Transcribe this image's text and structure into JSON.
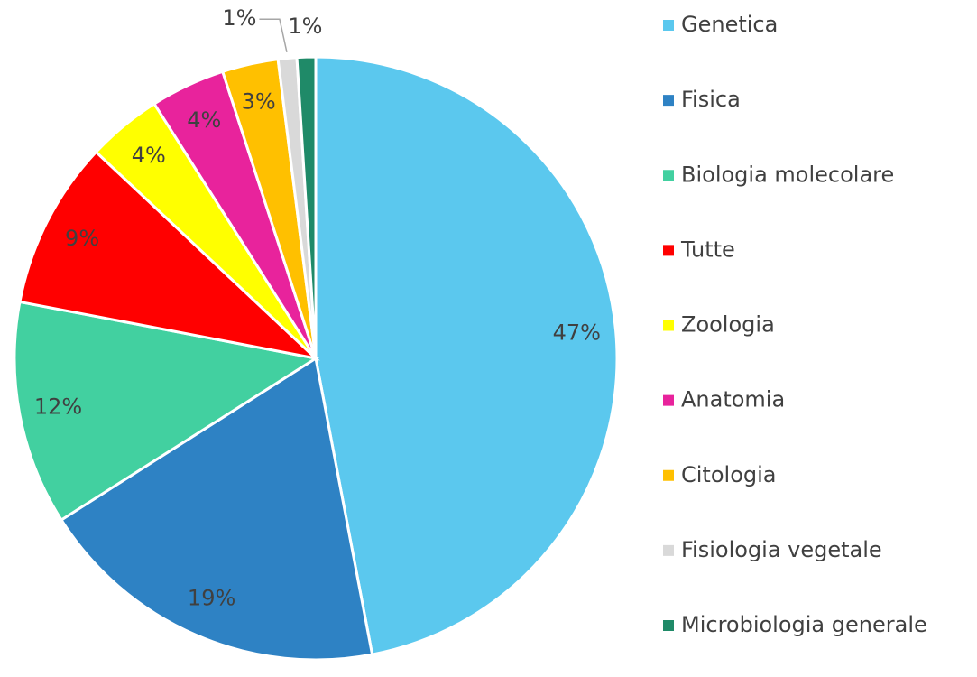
{
  "chart_data": {
    "type": "pie",
    "categories": [
      "Genetica",
      "Fisica",
      "Biologia molecolare",
      "Tutte",
      "Zoologia",
      "Anatomia",
      "Citologia",
      "Fisiologia vegetale",
      "Microbiologia generale"
    ],
    "values": [
      47,
      19,
      12,
      9,
      4,
      4,
      3,
      1,
      1
    ],
    "value_labels": [
      "47%",
      "19%",
      "12%",
      "9%",
      "4%",
      "4%",
      "3%",
      "1%",
      "1%"
    ],
    "colors": [
      "#5bc8ee",
      "#2e82c4",
      "#42d0a0",
      "#ff0000",
      "#ffff00",
      "#e8239c",
      "#ffc000",
      "#d9d9d9",
      "#1f8a68"
    ],
    "legend": "right"
  }
}
